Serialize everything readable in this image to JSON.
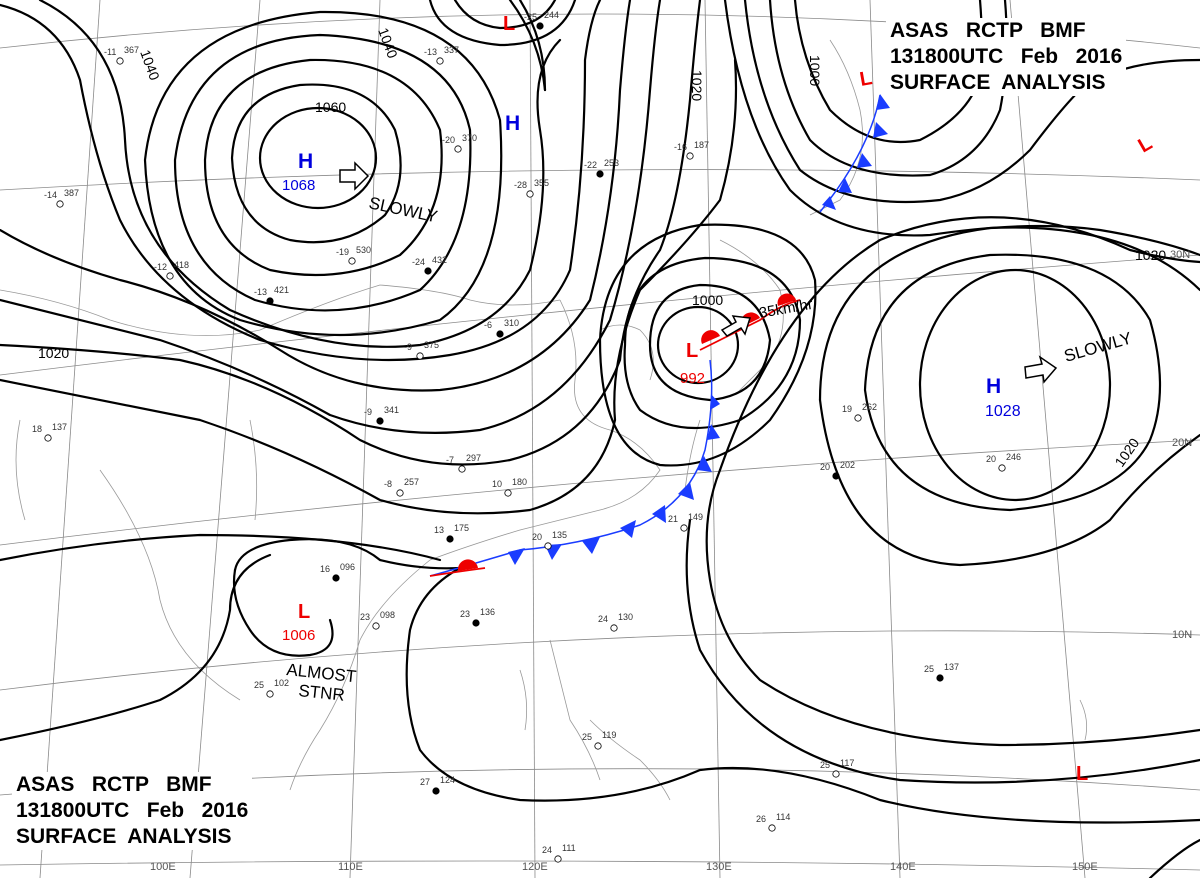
{
  "header": {
    "line1": "ASAS   RCTP   BMF",
    "line2": "131800UTC   Feb   2016",
    "line3": "SURFACE  ANALYSIS"
  },
  "pressure_centers": [
    {
      "id": "high-mongolia",
      "symbol": "H",
      "value": "1068",
      "color": "#0000dd",
      "motion": "SLOWLY"
    },
    {
      "id": "high-north",
      "symbol": "H",
      "value": "",
      "color": "#0000dd",
      "motion": ""
    },
    {
      "id": "high-pacific",
      "symbol": "H",
      "value": "1028",
      "color": "#0000dd",
      "motion": "SLOWLY"
    },
    {
      "id": "low-east-china-sea",
      "symbol": "L",
      "value": "992",
      "color": "#ee0000",
      "motion": "35km/hr"
    },
    {
      "id": "low-south-china-sea",
      "symbol": "L",
      "value": "1006",
      "color": "#ee0000",
      "motion": "ALMOST STNR"
    },
    {
      "id": "low-north",
      "symbol": "L",
      "value": "",
      "color": "#ee0000",
      "motion": ""
    },
    {
      "id": "low-northeast",
      "symbol": "L",
      "value": "",
      "color": "#ee0000",
      "motion": ""
    },
    {
      "id": "low-east",
      "symbol": "L",
      "value": "",
      "color": "#ee0000",
      "motion": ""
    },
    {
      "id": "low-southeast",
      "symbol": "L",
      "value": "",
      "color": "#ee0000",
      "motion": ""
    }
  ],
  "isobar_labels": [
    "1040",
    "1040",
    "1060",
    "1020",
    "1020",
    "1000",
    "1000",
    "1020",
    "1020"
  ],
  "motion_labels": {
    "slowly": "SLOWLY",
    "almost": "ALMOST",
    "stnr": "STNR",
    "speed": "35km/hr"
  },
  "latitude_labels": [
    "30N",
    "20N",
    "10N"
  ],
  "longitude_labels": [
    "100E",
    "110E",
    "120E",
    "130E",
    "140E",
    "150E"
  ],
  "stations": [
    {
      "t": "-25",
      "p": "244"
    },
    {
      "t": "-13",
      "p": "337"
    },
    {
      "t": "-20",
      "p": "370"
    },
    {
      "t": "-22",
      "p": "253"
    },
    {
      "t": "-28",
      "p": "355"
    },
    {
      "t": "-16",
      "p": "187"
    },
    {
      "t": "-24",
      "p": "432"
    },
    {
      "t": "-19",
      "p": "530"
    },
    {
      "t": "-12",
      "p": "418"
    },
    {
      "t": "-13",
      "p": "421"
    },
    {
      "t": "-9",
      "p": "375"
    },
    {
      "t": "18",
      "p": "137"
    },
    {
      "t": "16",
      "p": "096"
    },
    {
      "t": "23",
      "p": "098"
    },
    {
      "t": "25",
      "p": "102"
    },
    {
      "t": "23",
      "p": "136"
    },
    {
      "t": "24",
      "p": "130"
    },
    {
      "t": "19",
      "p": "262"
    },
    {
      "t": "20",
      "p": "202"
    },
    {
      "t": "20",
      "p": "246"
    },
    {
      "t": "21",
      "p": "149"
    },
    {
      "t": "25",
      "p": "137"
    },
    {
      "t": "25",
      "p": "117"
    },
    {
      "t": "26",
      "p": "114"
    },
    {
      "t": "27",
      "p": "124"
    },
    {
      "t": "24",
      "p": "111"
    },
    {
      "t": "25",
      "p": "119"
    },
    {
      "t": "13",
      "p": "175"
    },
    {
      "t": "10",
      "p": "180"
    },
    {
      "t": "20",
      "p": "135"
    },
    {
      "t": "-9",
      "p": "341"
    },
    {
      "t": "-7",
      "p": "297"
    },
    {
      "t": "-8",
      "p": "257"
    },
    {
      "t": "-6",
      "p": "310"
    },
    {
      "t": "-11",
      "p": "367"
    },
    {
      "t": "-14",
      "p": "387"
    }
  ]
}
